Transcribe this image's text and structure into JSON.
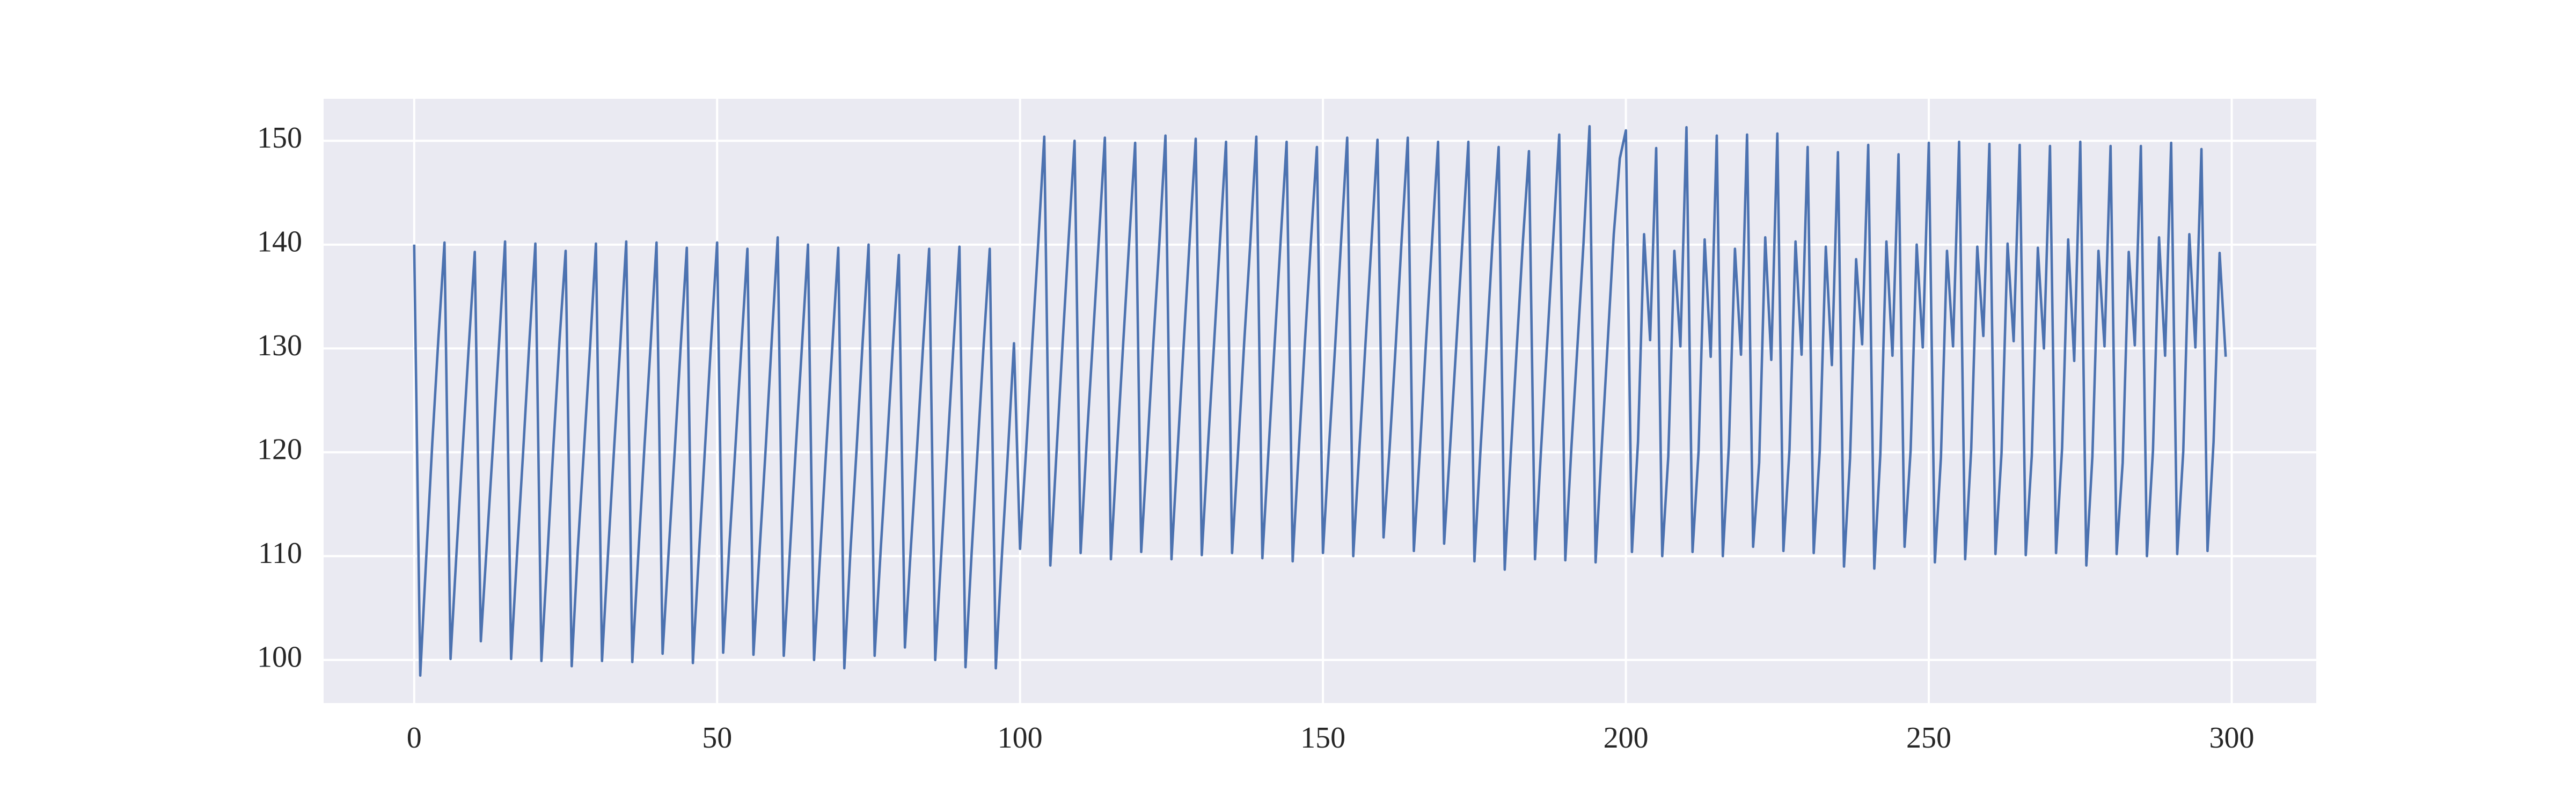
{
  "chart_data": {
    "type": "line",
    "color": "#4c72b0",
    "grid": true,
    "xlim": [
      -14.95,
      313.95
    ],
    "ylim": [
      95.85,
      154.05
    ],
    "xticks": [
      0,
      50,
      100,
      150,
      200,
      250,
      300
    ],
    "yticks": [
      100,
      110,
      120,
      130,
      140,
      150
    ],
    "x": [
      0,
      1,
      2,
      3,
      4,
      5,
      6,
      7,
      8,
      9,
      10,
      11,
      12,
      13,
      14,
      15,
      16,
      17,
      18,
      19,
      20,
      21,
      22,
      23,
      24,
      25,
      26,
      27,
      28,
      29,
      30,
      31,
      32,
      33,
      34,
      35,
      36,
      37,
      38,
      39,
      40,
      41,
      42,
      43,
      44,
      45,
      46,
      47,
      48,
      49,
      50,
      51,
      52,
      53,
      54,
      55,
      56,
      57,
      58,
      59,
      60,
      61,
      62,
      63,
      64,
      65,
      66,
      67,
      68,
      69,
      70,
      71,
      72,
      73,
      74,
      75,
      76,
      77,
      78,
      79,
      80,
      81,
      82,
      83,
      84,
      85,
      86,
      87,
      88,
      89,
      90,
      91,
      92,
      93,
      94,
      95,
      96,
      97,
      98,
      99,
      100,
      101,
      102,
      103,
      104,
      105,
      106,
      107,
      108,
      109,
      110,
      111,
      112,
      113,
      114,
      115,
      116,
      117,
      118,
      119,
      120,
      121,
      122,
      123,
      124,
      125,
      126,
      127,
      128,
      129,
      130,
      131,
      132,
      133,
      134,
      135,
      136,
      137,
      138,
      139,
      140,
      141,
      142,
      143,
      144,
      145,
      146,
      147,
      148,
      149,
      150,
      151,
      152,
      153,
      154,
      155,
      156,
      157,
      158,
      159,
      160,
      161,
      162,
      163,
      164,
      165,
      166,
      167,
      168,
      169,
      170,
      171,
      172,
      173,
      174,
      175,
      176,
      177,
      178,
      179,
      180,
      181,
      182,
      183,
      184,
      185,
      186,
      187,
      188,
      189,
      190,
      191,
      192,
      193,
      194,
      195,
      196,
      197,
      198,
      199,
      200,
      201,
      202,
      203,
      204,
      205,
      206,
      207,
      208,
      209,
      210,
      211,
      212,
      213,
      214,
      215,
      216,
      217,
      218,
      219,
      220,
      221,
      222,
      223,
      224,
      225,
      226,
      227,
      228,
      229,
      230,
      231,
      232,
      233,
      234,
      235,
      236,
      237,
      238,
      239,
      240,
      241,
      242,
      243,
      244,
      245,
      246,
      247,
      248,
      249,
      250,
      251,
      252,
      253,
      254,
      255,
      256,
      257,
      258,
      259,
      260,
      261,
      262,
      263,
      264,
      265,
      266,
      267,
      268,
      269,
      270,
      271,
      272,
      273,
      274,
      275,
      276,
      277,
      278,
      279,
      280,
      281,
      282,
      283,
      284,
      285,
      286,
      287,
      288,
      289,
      290,
      291,
      292,
      293,
      294,
      295,
      296,
      297,
      298,
      299
    ],
    "values": [
      140,
      98.5,
      110,
      121,
      131,
      140.2,
      100.1,
      110.5,
      120.3,
      130.1,
      139.3,
      101.8,
      111.2,
      120.6,
      130.4,
      140.3,
      100.1,
      110.4,
      120.2,
      130.5,
      140.1,
      99.9,
      110.1,
      120.8,
      130.9,
      139.4,
      99.4,
      110.6,
      120.1,
      129.8,
      140.1,
      99.9,
      110.3,
      120.4,
      130.2,
      140.3,
      99.8,
      110.2,
      120.5,
      130.1,
      140.2,
      100.6,
      110.4,
      120.1,
      130.3,
      139.7,
      99.7,
      110.2,
      120.4,
      130.6,
      140.2,
      100.7,
      110.8,
      120.3,
      130.1,
      139.6,
      100.5,
      110.4,
      120.2,
      130.6,
      140.7,
      100.4,
      110.3,
      120.5,
      130.2,
      140.0,
      100.0,
      110.1,
      120.2,
      130.0,
      139.7,
      99.2,
      110.4,
      120.1,
      130.4,
      140.0,
      100.4,
      110.6,
      120.2,
      130.1,
      139.0,
      101.2,
      111.0,
      120.4,
      130.3,
      139.6,
      100.0,
      110.2,
      120.1,
      130.2,
      139.8,
      99.3,
      110.2,
      120.3,
      130.4,
      139.6,
      99.2,
      110.0,
      120.0,
      130.5,
      110.7,
      120.2,
      130.3,
      140.1,
      150.4,
      109.1,
      119.8,
      130.2,
      140.3,
      150.0,
      110.3,
      121.0,
      130.6,
      140.4,
      150.3,
      109.7,
      120.1,
      130.2,
      140.1,
      149.8,
      110.4,
      120.3,
      130.5,
      140.2,
      150.5,
      109.7,
      120.1,
      130.3,
      140.4,
      150.2,
      110.1,
      120.4,
      130.2,
      140.3,
      149.9,
      110.3,
      120.2,
      130.6,
      140.1,
      150.4,
      109.8,
      120.0,
      130.2,
      140.3,
      149.9,
      109.5,
      120.1,
      130.4,
      140.2,
      149.4,
      110.3,
      120.5,
      130.1,
      140.4,
      150.3,
      110.0,
      120.2,
      130.3,
      140.1,
      150.1,
      111.8,
      120.4,
      130.2,
      140.6,
      150.3,
      110.5,
      120.1,
      130.5,
      140.2,
      149.9,
      111.2,
      120.6,
      130.3,
      140.1,
      149.9,
      109.5,
      120.2,
      130.1,
      140.4,
      149.4,
      108.7,
      119.8,
      130.2,
      140.3,
      149.0,
      109.7,
      120.3,
      130.4,
      140.5,
      150.6,
      109.6,
      120.4,
      130.2,
      140.1,
      151.4,
      109.4,
      120.3,
      130.6,
      141.0,
      148.3,
      151.0,
      110.4,
      121.0,
      141.0,
      130.8,
      149.3,
      110.0,
      119.6,
      139.4,
      130.2,
      151.3,
      110.4,
      120.1,
      140.5,
      129.2,
      150.5,
      110.0,
      120.6,
      139.6,
      129.4,
      150.6,
      110.9,
      119.0,
      140.7,
      128.9,
      150.7,
      110.5,
      120.2,
      140.3,
      129.4,
      149.4,
      110.3,
      120.1,
      139.8,
      128.4,
      148.9,
      109.0,
      119.4,
      138.6,
      130.4,
      149.6,
      108.8,
      119.8,
      140.3,
      129.3,
      148.7,
      110.9,
      120.2,
      140.0,
      130.1,
      149.8,
      109.4,
      119.5,
      139.4,
      130.2,
      149.9,
      109.7,
      120.3,
      139.8,
      131.2,
      149.7,
      110.2,
      119.9,
      140.1,
      130.7,
      149.6,
      110.1,
      119.7,
      139.7,
      130.0,
      149.5,
      110.3,
      120.4,
      140.5,
      128.8,
      149.9,
      109.1,
      119.6,
      139.4,
      130.2,
      149.5,
      110.2,
      119.0,
      139.3,
      130.3,
      149.5,
      110.0,
      120.2,
      140.7,
      129.3,
      149.8,
      110.2,
      120.1,
      141.0,
      130.1,
      149.2,
      110.5,
      121.0,
      139.2,
      129.2
    ]
  }
}
